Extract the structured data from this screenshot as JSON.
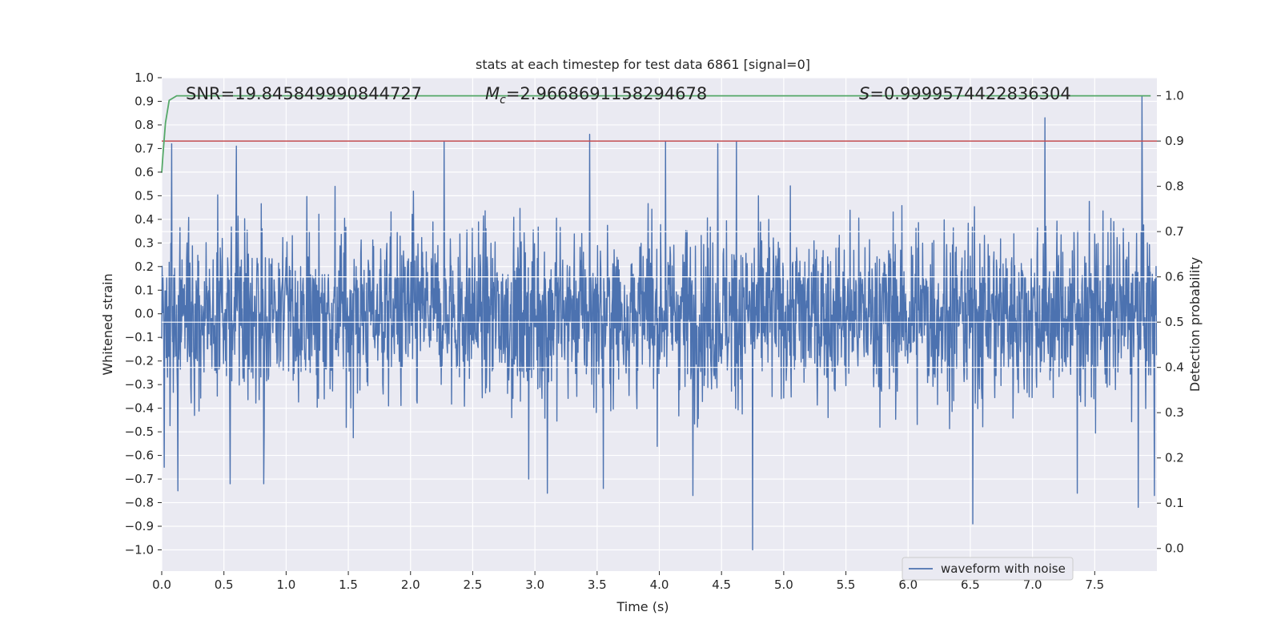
{
  "chart_data": {
    "type": "line",
    "title": "stats at each timestep for test data 6861 [signal=0]",
    "xlabel": "Time (s)",
    "ylabel": "Whitened strain",
    "y2label": "Detection probability",
    "xlim": [
      0.0,
      8.0
    ],
    "ylim": [
      -1.09,
      1.0
    ],
    "y2lim": [
      -0.05,
      1.04
    ],
    "x_ticks": [
      "0.0",
      "0.5",
      "1.0",
      "1.5",
      "2.0",
      "2.5",
      "3.0",
      "3.5",
      "4.0",
      "4.5",
      "5.0",
      "5.5",
      "6.0",
      "6.5",
      "7.0",
      "7.5"
    ],
    "y_ticks": [
      "1.0",
      "0.9",
      "0.8",
      "0.7",
      "0.6",
      "0.5",
      "0.4",
      "0.3",
      "0.2",
      "0.1",
      "0.0",
      "−0.1",
      "−0.2",
      "−0.3",
      "−0.4",
      "−0.5",
      "−0.6",
      "−0.7",
      "−0.8",
      "−0.9",
      "−1.0"
    ],
    "y2_ticks": [
      "1.0",
      "0.9",
      "0.8",
      "0.7",
      "0.6",
      "0.5",
      "0.4",
      "0.3",
      "0.2",
      "0.1",
      "0.0"
    ],
    "annotations": {
      "snr": "SNR=19.845849990844727",
      "mc_symbol": "M",
      "mc_subscript": "c",
      "mc_value": "=2.9668691158294678",
      "s_symbol": "S",
      "s_value": "=0.9999574422836304"
    },
    "legend": {
      "entries": [
        "waveform with noise"
      ],
      "placement": "bottom-right"
    },
    "threshold": {
      "value": 0.9,
      "axis": "right",
      "color": "#c44e52"
    },
    "series": [
      {
        "name": "waveform with noise",
        "axis": "left",
        "color": "#4c72b0",
        "generated_noise": true,
        "noise_samples": 2400,
        "noise_amplitude": 0.4,
        "peaks": [
          {
            "t": 0.02,
            "v": -0.65
          },
          {
            "t": 0.08,
            "v": 0.72
          },
          {
            "t": 0.13,
            "v": -0.75
          },
          {
            "t": 0.55,
            "v": -0.72
          },
          {
            "t": 0.6,
            "v": 0.71
          },
          {
            "t": 0.82,
            "v": -0.72
          },
          {
            "t": 2.27,
            "v": 0.73
          },
          {
            "t": 2.95,
            "v": -0.7
          },
          {
            "t": 3.1,
            "v": -0.76
          },
          {
            "t": 3.44,
            "v": 0.76
          },
          {
            "t": 3.55,
            "v": -0.74
          },
          {
            "t": 4.05,
            "v": 0.73
          },
          {
            "t": 4.27,
            "v": -0.77
          },
          {
            "t": 4.47,
            "v": 0.72
          },
          {
            "t": 4.62,
            "v": 0.73
          },
          {
            "t": 4.75,
            "v": -1.0
          },
          {
            "t": 6.1,
            "v": 0.12
          },
          {
            "t": 6.52,
            "v": -0.89
          },
          {
            "t": 7.1,
            "v": 0.83
          },
          {
            "t": 7.36,
            "v": -0.76
          },
          {
            "t": 7.88,
            "v": 0.92
          },
          {
            "t": 7.85,
            "v": -0.82
          },
          {
            "t": 7.98,
            "v": -0.77
          }
        ]
      },
      {
        "name": "detection probability",
        "axis": "right",
        "color": "#55a868",
        "x": [
          0.0,
          0.01,
          0.03,
          0.06,
          0.12,
          0.3,
          1.0,
          3.0,
          5.0,
          7.0,
          7.95
        ],
        "y": [
          0.83,
          0.87,
          0.94,
          0.99,
          1.0,
          1.0,
          1.0,
          1.0,
          1.0,
          1.0,
          1.0
        ]
      }
    ]
  }
}
